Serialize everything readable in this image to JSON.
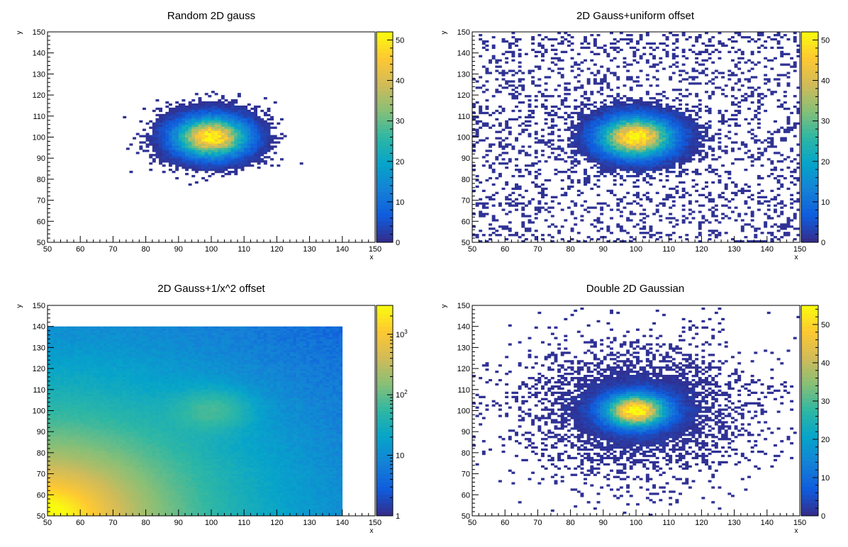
{
  "chart_data": [
    {
      "type": "heatmap",
      "title": "Random 2D gauss",
      "xlabel": "x",
      "ylabel": "y",
      "xlim": [
        50,
        150
      ],
      "ylim": [
        50,
        150
      ],
      "x_ticks": [
        "50",
        "60",
        "70",
        "80",
        "90",
        "100",
        "110",
        "120",
        "130",
        "140",
        "150"
      ],
      "y_ticks": [
        "50",
        "60",
        "70",
        "80",
        "90",
        "100",
        "110",
        "120",
        "130",
        "140",
        "150"
      ],
      "color_scale": "linear",
      "zlim": [
        0,
        52
      ],
      "z_ticks": [
        "0",
        "10",
        "20",
        "30",
        "40",
        "50"
      ],
      "grid": false,
      "colormap": "kBird",
      "components": [
        {
          "kind": "gaussian",
          "center": [
            100,
            100
          ],
          "sigma": [
            7,
            6
          ],
          "peak": 52
        }
      ]
    },
    {
      "type": "heatmap",
      "title": "2D Gauss+uniform offset",
      "xlabel": "x",
      "ylabel": "y",
      "xlim": [
        50,
        150
      ],
      "ylim": [
        50,
        150
      ],
      "x_ticks": [
        "50",
        "60",
        "70",
        "80",
        "90",
        "100",
        "110",
        "120",
        "130",
        "140",
        "150"
      ],
      "y_ticks": [
        "50",
        "60",
        "70",
        "80",
        "90",
        "100",
        "110",
        "120",
        "130",
        "140",
        "150"
      ],
      "color_scale": "linear",
      "zlim": [
        0,
        52
      ],
      "z_ticks": [
        "0",
        "10",
        "20",
        "30",
        "40",
        "50"
      ],
      "grid": false,
      "colormap": "kBird",
      "components": [
        {
          "kind": "gaussian",
          "center": [
            100,
            100
          ],
          "sigma": [
            7,
            6
          ],
          "peak": 52
        },
        {
          "kind": "uniform",
          "level": 1,
          "occupancy": 0.38
        }
      ]
    },
    {
      "type": "heatmap",
      "title": "2D Gauss+1/x^2 offset",
      "xlabel": "x",
      "ylabel": "y",
      "xlim": [
        50,
        150
      ],
      "ylim": [
        50,
        150
      ],
      "x_ticks": [
        "50",
        "60",
        "70",
        "80",
        "90",
        "100",
        "110",
        "120",
        "130",
        "140",
        "150"
      ],
      "y_ticks": [
        "50",
        "60",
        "70",
        "80",
        "90",
        "100",
        "110",
        "120",
        "130",
        "140",
        "150"
      ],
      "color_scale": "log",
      "zlim": [
        1,
        3000
      ],
      "z_ticks": [
        "1",
        "10",
        "10^2",
        "10^3"
      ],
      "grid": false,
      "colormap": "kBird",
      "fill_region": {
        "x": [
          50,
          140
        ],
        "y": [
          50,
          140
        ]
      },
      "components": [
        {
          "kind": "gaussian",
          "center": [
            100,
            100
          ],
          "sigma": [
            7,
            6
          ],
          "peak": 52
        },
        {
          "kind": "inverse_square",
          "amplitude": 3000
        }
      ]
    },
    {
      "type": "heatmap",
      "title": "Double 2D Gaussian",
      "xlabel": "x",
      "ylabel": "y",
      "xlim": [
        50,
        150
      ],
      "ylim": [
        50,
        150
      ],
      "x_ticks": [
        "50",
        "60",
        "70",
        "80",
        "90",
        "100",
        "110",
        "120",
        "130",
        "140",
        "150"
      ],
      "y_ticks": [
        "50",
        "60",
        "70",
        "80",
        "90",
        "100",
        "110",
        "120",
        "130",
        "140",
        "150"
      ],
      "color_scale": "linear",
      "zlim": [
        0,
        55
      ],
      "z_ticks": [
        "0",
        "10",
        "20",
        "30",
        "40",
        "50"
      ],
      "grid": false,
      "colormap": "kBird",
      "components": [
        {
          "kind": "gaussian",
          "center": [
            100,
            100
          ],
          "sigma": [
            6,
            5
          ],
          "peak": 55
        },
        {
          "kind": "gaussian",
          "center": [
            100,
            100
          ],
          "sigma": [
            20,
            18
          ],
          "peak": 2
        }
      ]
    }
  ]
}
